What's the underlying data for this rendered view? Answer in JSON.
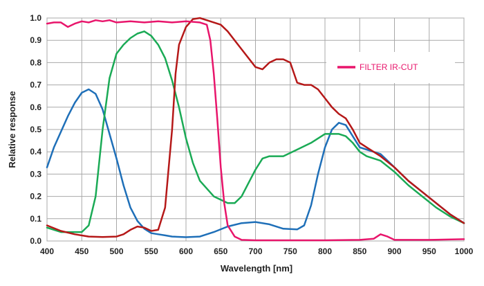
{
  "chart_data": {
    "type": "line",
    "xlabel": "Wavelength [nm]",
    "ylabel": "Relative response",
    "xlim": [
      400,
      1000
    ],
    "ylim": [
      0,
      1.0
    ],
    "x_ticks": [
      400,
      450,
      500,
      550,
      600,
      650,
      700,
      750,
      800,
      850,
      900,
      950,
      1000
    ],
    "y_ticks": [
      0.0,
      0.1,
      0.2,
      0.3,
      0.4,
      0.5,
      0.6,
      0.7,
      0.8,
      0.9,
      1.0
    ],
    "y_tick_labels": [
      "0.0",
      "0.1",
      "0.2",
      "0.3",
      "0.4",
      "0.5",
      "0.6",
      "0.7",
      "0.8",
      "0.9",
      "1.0"
    ],
    "grid": true,
    "legend_position": "top-right",
    "legend": [
      {
        "label": "FILTER IR-CUT",
        "color": "#e8156b"
      }
    ],
    "series": [
      {
        "color": "#1e6fb8",
        "x": [
          400,
          410,
          420,
          430,
          440,
          450,
          460,
          470,
          480,
          490,
          500,
          510,
          520,
          530,
          540,
          550,
          560,
          570,
          580,
          600,
          620,
          640,
          660,
          680,
          700,
          720,
          740,
          760,
          770,
          780,
          790,
          800,
          810,
          820,
          830,
          840,
          850,
          860,
          880,
          900,
          920,
          940,
          960,
          980,
          1000
        ],
        "y": [
          0.33,
          0.42,
          0.49,
          0.56,
          0.62,
          0.665,
          0.68,
          0.66,
          0.59,
          0.48,
          0.37,
          0.25,
          0.15,
          0.09,
          0.055,
          0.035,
          0.03,
          0.025,
          0.02,
          0.017,
          0.02,
          0.04,
          0.065,
          0.08,
          0.085,
          0.075,
          0.055,
          0.052,
          0.07,
          0.16,
          0.3,
          0.42,
          0.5,
          0.53,
          0.52,
          0.47,
          0.42,
          0.41,
          0.39,
          0.33,
          0.27,
          0.22,
          0.17,
          0.12,
          0.08
        ]
      },
      {
        "color": "#1aaa55",
        "x": [
          400,
          420,
          440,
          450,
          460,
          470,
          480,
          490,
          500,
          510,
          520,
          530,
          540,
          550,
          560,
          570,
          580,
          590,
          600,
          610,
          620,
          640,
          660,
          670,
          680,
          690,
          700,
          710,
          720,
          740,
          760,
          780,
          800,
          820,
          830,
          840,
          850,
          860,
          880,
          900,
          920,
          940,
          960,
          980,
          1000
        ],
        "y": [
          0.06,
          0.04,
          0.04,
          0.04,
          0.07,
          0.2,
          0.5,
          0.73,
          0.84,
          0.88,
          0.91,
          0.93,
          0.94,
          0.92,
          0.88,
          0.82,
          0.72,
          0.6,
          0.46,
          0.35,
          0.27,
          0.2,
          0.17,
          0.17,
          0.2,
          0.26,
          0.32,
          0.37,
          0.38,
          0.38,
          0.41,
          0.44,
          0.48,
          0.48,
          0.47,
          0.44,
          0.4,
          0.38,
          0.36,
          0.31,
          0.25,
          0.2,
          0.15,
          0.11,
          0.08
        ]
      },
      {
        "color": "#b51818",
        "x": [
          400,
          420,
          440,
          460,
          480,
          500,
          510,
          520,
          530,
          540,
          550,
          560,
          570,
          580,
          585,
          590,
          600,
          610,
          620,
          630,
          640,
          650,
          660,
          680,
          700,
          710,
          720,
          730,
          740,
          750,
          760,
          770,
          780,
          790,
          800,
          810,
          820,
          830,
          840,
          850,
          860,
          880,
          900,
          920,
          940,
          960,
          980,
          1000
        ],
        "y": [
          0.07,
          0.045,
          0.03,
          0.02,
          0.018,
          0.02,
          0.03,
          0.05,
          0.065,
          0.06,
          0.045,
          0.05,
          0.15,
          0.5,
          0.75,
          0.88,
          0.96,
          0.995,
          1.0,
          0.99,
          0.98,
          0.97,
          0.94,
          0.86,
          0.78,
          0.77,
          0.8,
          0.815,
          0.815,
          0.8,
          0.71,
          0.7,
          0.7,
          0.68,
          0.64,
          0.6,
          0.57,
          0.55,
          0.5,
          0.44,
          0.42,
          0.38,
          0.33,
          0.27,
          0.22,
          0.17,
          0.12,
          0.08
        ]
      },
      {
        "name": "FILTER IR-CUT",
        "color": "#e8156b",
        "x": [
          400,
          410,
          420,
          430,
          440,
          450,
          460,
          470,
          480,
          490,
          500,
          520,
          540,
          560,
          580,
          600,
          620,
          630,
          635,
          640,
          645,
          650,
          655,
          660,
          670,
          680,
          700,
          750,
          800,
          850,
          870,
          880,
          890,
          900,
          950,
          1000
        ],
        "y": [
          0.975,
          0.98,
          0.98,
          0.96,
          0.975,
          0.985,
          0.98,
          0.99,
          0.985,
          0.99,
          0.98,
          0.985,
          0.98,
          0.985,
          0.98,
          0.985,
          0.98,
          0.97,
          0.9,
          0.75,
          0.55,
          0.33,
          0.17,
          0.07,
          0.02,
          0.005,
          0.003,
          0.003,
          0.003,
          0.005,
          0.01,
          0.03,
          0.02,
          0.005,
          0.005,
          0.008
        ]
      }
    ]
  }
}
